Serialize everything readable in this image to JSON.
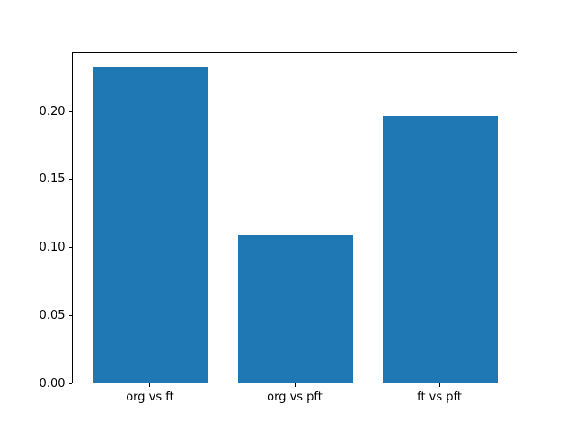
{
  "chart_data": {
    "type": "bar",
    "categories": [
      "org vs ft",
      "org vs pft",
      "ft vs pft"
    ],
    "values": [
      0.232,
      0.108,
      0.196
    ],
    "title": "",
    "xlabel": "",
    "ylabel": "",
    "ylim": [
      0,
      0.2436
    ],
    "yticks": [
      0.0,
      0.05,
      0.1,
      0.15,
      0.2
    ],
    "ytick_labels": [
      "0.00",
      "0.05",
      "0.10",
      "0.15",
      "0.20"
    ],
    "bar_color": "#1f77b4",
    "axis_color": "#000000",
    "background_color": "#ffffff",
    "grid": false,
    "legend": null,
    "bar_width_fraction": 0.8
  }
}
